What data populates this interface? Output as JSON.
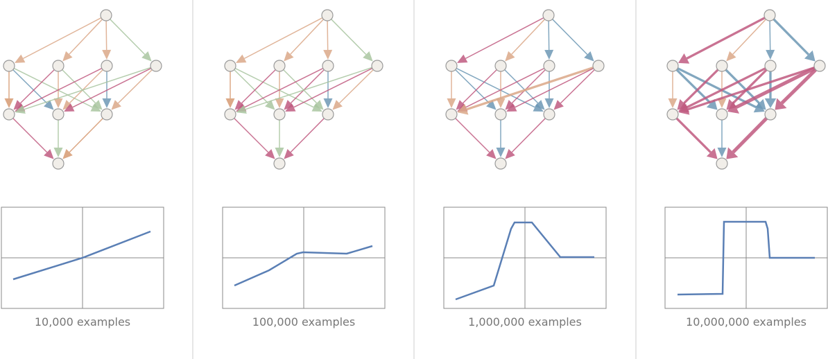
{
  "panels": [
    {
      "caption": "10,000 examples"
    },
    {
      "caption": "100,000 examples"
    },
    {
      "caption": "1,000,000 examples"
    },
    {
      "caption": "10,000,000 examples"
    }
  ]
}
